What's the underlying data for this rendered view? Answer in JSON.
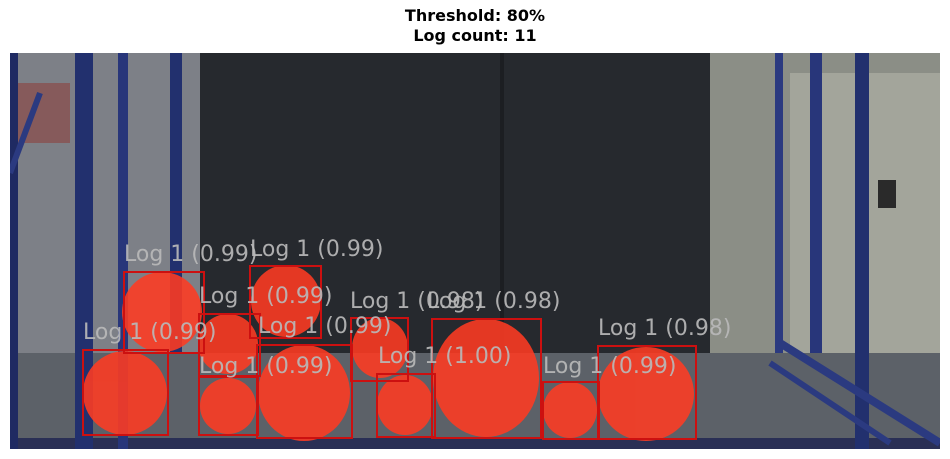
{
  "header": {
    "threshold_line": "Threshold: 80%",
    "count_line": "Log count: 11"
  },
  "detections": [
    {
      "label": "Log 1 (0.99)"
    },
    {
      "label": "Log 1 (0.99)"
    },
    {
      "label": "Log 1 (0.99)"
    },
    {
      "label": "Log 1 (0.99)"
    },
    {
      "label": "Log 1 (0.99)"
    },
    {
      "label": "Log 1 (0.99)"
    },
    {
      "label": "Log 1 (0.98)"
    },
    {
      "label": "Log 1 (0.98)"
    },
    {
      "label": "Log 1 (1.00)"
    },
    {
      "label": "Log 1 (0.99)"
    },
    {
      "label": "Log 1 (0.98)"
    }
  ],
  "colors": {
    "box": "#cc1010",
    "mask": "#ff3b22",
    "label": "#b9b9b9"
  }
}
